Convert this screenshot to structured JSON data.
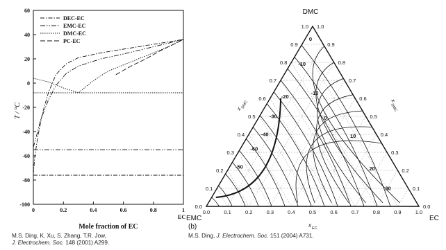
{
  "chart_data": [
    {
      "type": "line",
      "title": "",
      "xlabel": "Mole fraction of EC",
      "ylabel": "T / °C",
      "x_end_label": "EC",
      "xlim": [
        0,
        1
      ],
      "ylim": [
        -100,
        60
      ],
      "xticks": [
        "0",
        "0.2",
        "0.4",
        "0.6",
        "0.8",
        "1"
      ],
      "yticks": [
        "60",
        "40",
        "20",
        "0",
        "-20",
        "-40",
        "-60",
        "-80",
        "-100"
      ],
      "legend": {
        "placement": "top-left",
        "entries": [
          "DEC-EC",
          "EMC-EC",
          "DMC-EC",
          "PC-EC"
        ]
      },
      "series": [
        {
          "name": "DEC-EC",
          "dash": "6 2 1.5 2",
          "points": [
            [
              0,
              -75
            ],
            [
              0.01,
              -60
            ],
            [
              0.03,
              -44
            ],
            [
              0.06,
              -25
            ],
            [
              0.1,
              -8
            ],
            [
              0.15,
              7
            ],
            [
              0.22,
              16
            ],
            [
              0.3,
              21
            ],
            [
              0.45,
              25
            ],
            [
              0.6,
              28
            ],
            [
              0.8,
              32
            ],
            [
              1,
              36
            ]
          ],
          "eutectic": -76
        },
        {
          "name": "EMC-EC",
          "dash": "7 2 1.5 2 1.5 2",
          "points": [
            [
              0,
              -53
            ],
            [
              0.02,
              -44
            ],
            [
              0.05,
              -30
            ],
            [
              0.1,
              -14
            ],
            [
              0.15,
              -2
            ],
            [
              0.22,
              8
            ],
            [
              0.3,
              14
            ],
            [
              0.45,
              20
            ],
            [
              0.6,
              24
            ],
            [
              0.8,
              30
            ],
            [
              1,
              36
            ]
          ],
          "eutectic": -55
        },
        {
          "name": "DMC-EC",
          "dash": "1.5 1.5",
          "points": [
            [
              0,
              4
            ],
            [
              0.1,
              1
            ],
            [
              0.2,
              -4
            ],
            [
              0.3,
              -8
            ],
            [
              0.4,
              2
            ],
            [
              0.5,
              10
            ],
            [
              0.6,
              15
            ],
            [
              0.7,
              20
            ],
            [
              0.8,
              25
            ],
            [
              0.9,
              30
            ],
            [
              1,
              36
            ]
          ],
          "eutectic": -8
        },
        {
          "name": "PC-EC",
          "dash": "7 3",
          "points": [
            [
              0.55,
              7
            ],
            [
              0.65,
              14
            ],
            [
              0.75,
              20
            ],
            [
              0.85,
              27
            ],
            [
              0.95,
              33
            ],
            [
              1,
              36
            ]
          ]
        }
      ]
    },
    {
      "type": "ternary",
      "panel_label": "(b)",
      "vertices": {
        "top": "DMC",
        "left": "EMC",
        "right": "EC"
      },
      "axis_labels": {
        "left": "x_DMC (left)",
        "right": "x_DMC (right)",
        "bottom": "x_EC"
      },
      "edge_ticks": [
        "0.0",
        "0.1",
        "0.2",
        "0.3",
        "0.4",
        "0.5",
        "0.6",
        "0.7",
        "0.8",
        "0.9",
        "1.0"
      ],
      "contours": [
        {
          "label": "0",
          "at": {
            "DMC": 0.92,
            "EMC": 0.05,
            "EC": 0.03
          }
        },
        {
          "label": "-10",
          "at": {
            "DMC": 0.78,
            "EMC": 0.16,
            "EC": 0.06
          }
        },
        {
          "label": "-20",
          "at": {
            "DMC": 0.6,
            "EMC": 0.33,
            "EC": 0.07
          }
        },
        {
          "label": "-30",
          "at": {
            "DMC": 0.49,
            "EMC": 0.44,
            "EC": 0.07
          }
        },
        {
          "label": "-40",
          "at": {
            "DMC": 0.39,
            "EMC": 0.53,
            "EC": 0.08
          }
        },
        {
          "label": "-50",
          "at": {
            "DMC": 0.21,
            "EMC": 0.74,
            "EC": 0.05
          }
        },
        {
          "label": "-60",
          "at": {
            "DMC": 0.31,
            "EMC": 0.62,
            "EC": 0.07
          }
        },
        {
          "label": "-10",
          "at": {
            "DMC": 0.62,
            "EMC": 0.18,
            "EC": 0.2
          }
        },
        {
          "label": "0",
          "at": {
            "DMC": 0.48,
            "EMC": 0.2,
            "EC": 0.32
          }
        },
        {
          "label": "10",
          "at": {
            "DMC": 0.38,
            "EMC": 0.12,
            "EC": 0.5
          }
        },
        {
          "label": "20",
          "at": {
            "DMC": 0.2,
            "EMC": 0.12,
            "EC": 0.68
          }
        },
        {
          "label": "30",
          "at": {
            "DMC": 0.09,
            "EMC": 0.1,
            "EC": 0.81
          }
        }
      ]
    }
  ],
  "captions": {
    "left_line1": "M.S. Ding, K. Xu, S. Zhang, T.R. Jow,",
    "left_line2_journal": "J. Electrochem. Soc.",
    "left_line2_rest": " 148 (2001) A299.",
    "right_author": "M.S. Ding, ",
    "right_journal": "J. Electrochem. Soc.",
    "right_rest": " 151 (2004) A731."
  }
}
